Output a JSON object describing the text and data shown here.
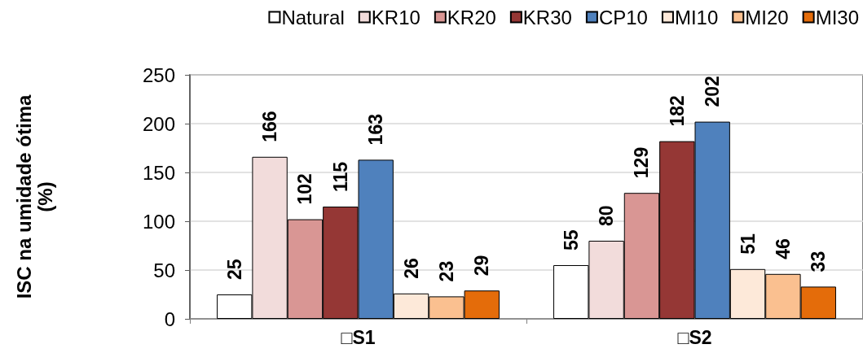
{
  "chart_data": {
    "type": "bar",
    "ylabel": "ISC na umidade ótima\n(%)",
    "categories": [
      "□S1",
      "□S2"
    ],
    "series": [
      {
        "name": "Natural",
        "color": "#ffffff",
        "values": [
          25,
          55
        ]
      },
      {
        "name": "KR10",
        "color": "#f2dcdb",
        "values": [
          166,
          80
        ]
      },
      {
        "name": "KR20",
        "color": "#d99694",
        "values": [
          102,
          129
        ]
      },
      {
        "name": "KR30",
        "color": "#953735",
        "values": [
          115,
          182
        ]
      },
      {
        "name": "CP10",
        "color": "#4f81bd",
        "values": [
          163,
          202
        ]
      },
      {
        "name": "MI10",
        "color": "#fde9d9",
        "values": [
          26,
          51
        ]
      },
      {
        "name": "MI20",
        "color": "#fac090",
        "values": [
          23,
          46
        ]
      },
      {
        "name": "MI30",
        "color": "#e46c0a",
        "values": [
          29,
          33
        ]
      }
    ],
    "ylim": [
      0,
      250
    ],
    "yticks": [
      0,
      50,
      100,
      150,
      200,
      250
    ],
    "grid": "y",
    "legend": "top right",
    "data_labels": true
  }
}
